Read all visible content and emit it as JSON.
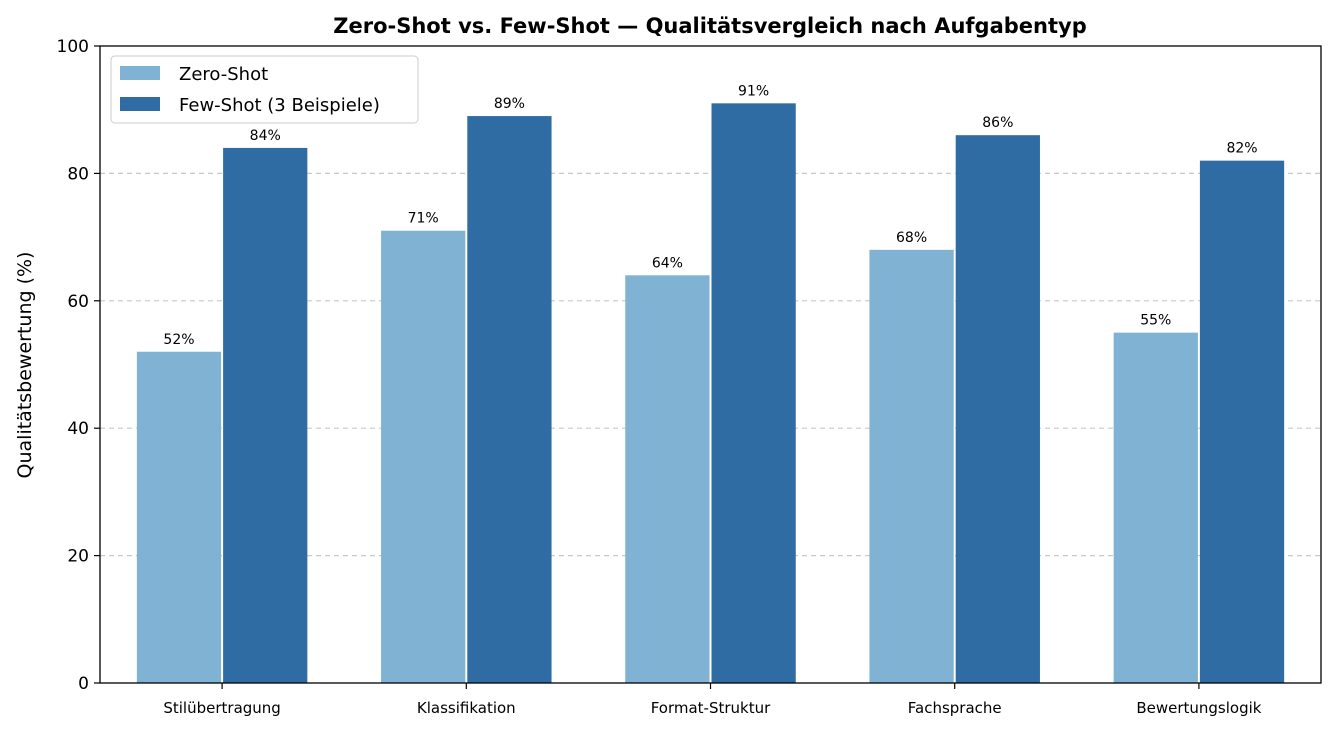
{
  "chart_data": {
    "type": "bar",
    "title": "Zero-Shot vs. Few-Shot — Qualitätsvergleich nach Aufgabentyp",
    "xlabel": "",
    "ylabel": "Qualitätsbewertung (%)",
    "ylim": [
      0,
      100
    ],
    "yticks": [
      0,
      20,
      40,
      60,
      80,
      100
    ],
    "grid": "y-dashed",
    "legend_position": "top-left",
    "categories": [
      "Stilübertragung",
      "Klassifikation",
      "Format-Struktur",
      "Fachsprache",
      "Bewertungslogik"
    ],
    "series": [
      {
        "name": "Zero-Shot",
        "color": "#7fb2d3",
        "values": [
          52,
          71,
          64,
          68,
          55
        ],
        "labels": [
          "52%",
          "71%",
          "64%",
          "68%",
          "55%"
        ]
      },
      {
        "name": "Few-Shot (3 Beispiele)",
        "color": "#2e6ca3",
        "values": [
          84,
          89,
          91,
          86,
          82
        ],
        "labels": [
          "84%",
          "89%",
          "91%",
          "86%",
          "82%"
        ]
      }
    ]
  }
}
